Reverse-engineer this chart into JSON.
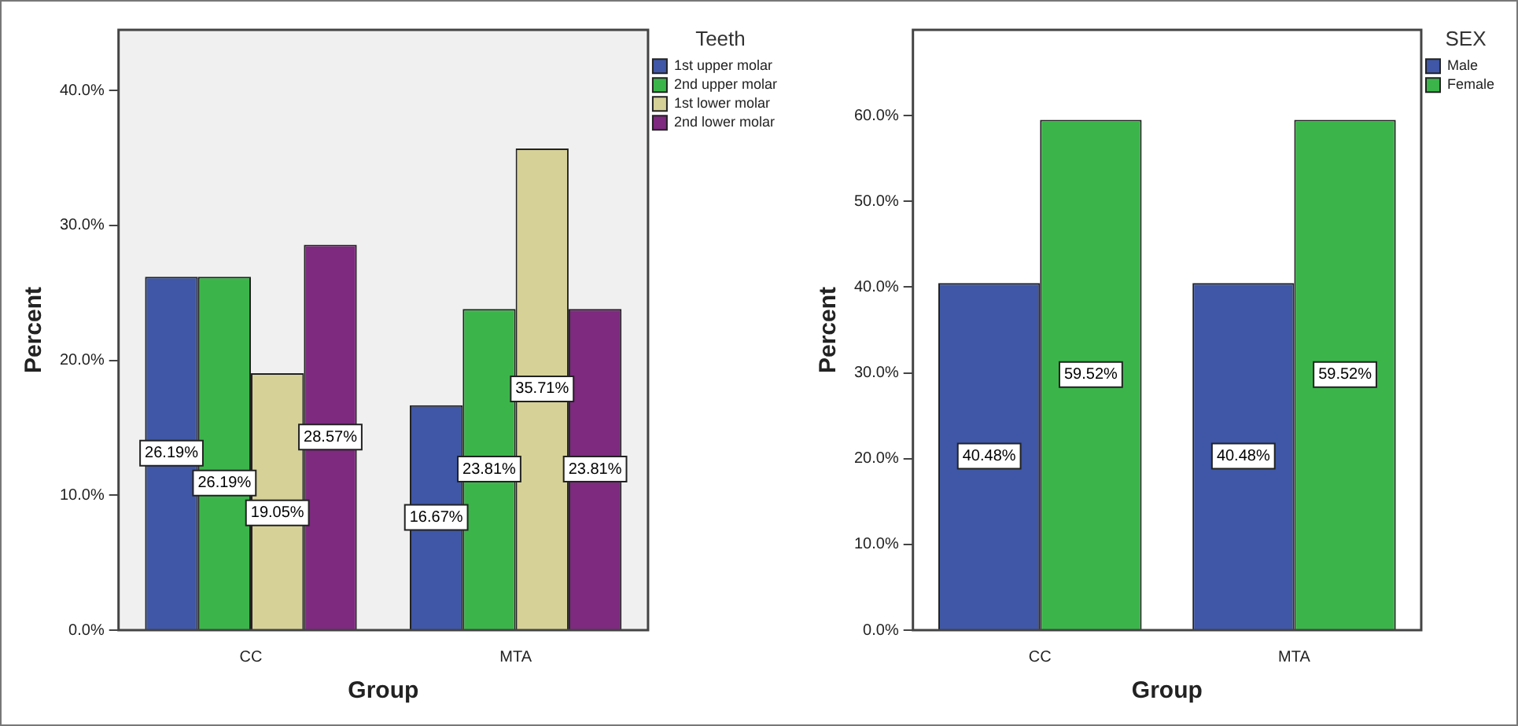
{
  "chart_data": [
    {
      "type": "bar",
      "xlabel": "Group",
      "ylabel": "Percent",
      "legend_title": "Teeth",
      "categories": [
        "CC",
        "MTA"
      ],
      "series": [
        {
          "name": "1st upper molar",
          "color": "#3f57a6",
          "values": [
            26.19,
            16.67
          ],
          "value_labels": [
            "26.19%",
            "16.67%"
          ]
        },
        {
          "name": "2nd upper molar",
          "color": "#3bb54a",
          "values": [
            26.19,
            23.81
          ],
          "value_labels": [
            "26.19%",
            "23.81%"
          ]
        },
        {
          "name": "1st lower molar",
          "color": "#d6d197",
          "values": [
            19.05,
            35.71
          ],
          "value_labels": [
            "19.05%",
            "35.71%"
          ]
        },
        {
          "name": "2nd lower molar",
          "color": "#7d2a7f",
          "values": [
            28.57,
            23.81
          ],
          "value_labels": [
            "28.57%",
            "23.81%"
          ]
        }
      ],
      "ylim": [
        0,
        44.5
      ],
      "yticks": [
        {
          "value": 0,
          "label": "0.0%"
        },
        {
          "value": 10,
          "label": "10.0%"
        },
        {
          "value": 20,
          "label": "20.0%"
        },
        {
          "value": 30,
          "label": "30.0%"
        },
        {
          "value": 40,
          "label": "40.0%"
        }
      ],
      "grid": false,
      "legend": "top right"
    },
    {
      "type": "bar",
      "xlabel": "Group",
      "ylabel": "Percent",
      "legend_title": "SEX",
      "categories": [
        "CC",
        "MTA"
      ],
      "series": [
        {
          "name": "Male",
          "color": "#3f57a6",
          "values": [
            40.48,
            40.48
          ],
          "value_labels": [
            "40.48%",
            "40.48%"
          ]
        },
        {
          "name": "Female",
          "color": "#3bb54a",
          "values": [
            59.52,
            59.52
          ],
          "value_labels": [
            "59.52%",
            "59.52%"
          ]
        }
      ],
      "ylim": [
        0,
        70
      ],
      "yticks": [
        {
          "value": 0,
          "label": "0.0%"
        },
        {
          "value": 10,
          "label": "10.0%"
        },
        {
          "value": 20,
          "label": "20.0%"
        },
        {
          "value": 30,
          "label": "30.0%"
        },
        {
          "value": 40,
          "label": "40.0%"
        },
        {
          "value": 50,
          "label": "50.0%"
        },
        {
          "value": 60,
          "label": "60.0%"
        }
      ],
      "grid": false,
      "legend": "top right"
    }
  ]
}
